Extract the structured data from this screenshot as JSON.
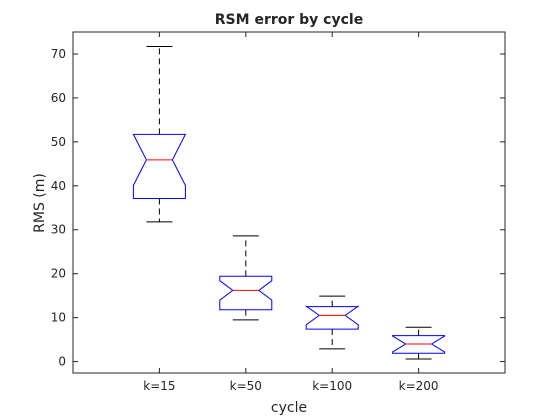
{
  "chart_data": {
    "type": "boxplot",
    "title": "RSM error by cycle",
    "xlabel": "cycle",
    "ylabel": "RMS (m)",
    "ylim": [
      -2.6,
      75
    ],
    "yticks": [
      0,
      10,
      20,
      30,
      40,
      50,
      60,
      70
    ],
    "grid": false,
    "notched": true,
    "categories": [
      "k=15",
      "k=50",
      "k=100",
      "k=200"
    ],
    "boxes": [
      {
        "label": "k=15",
        "whisker_low": 31.8,
        "q1": 37.1,
        "median": 45.9,
        "q3": 51.7,
        "whisker_high": 71.7,
        "notch_low": 40.1,
        "notch_high": 51.7
      },
      {
        "label": "k=50",
        "whisker_low": 9.5,
        "q1": 11.8,
        "median": 16.2,
        "q3": 19.4,
        "whisker_high": 28.6,
        "notch_low": 14.0,
        "notch_high": 18.4
      },
      {
        "label": "k=100",
        "whisker_low": 2.9,
        "q1": 7.4,
        "median": 10.5,
        "q3": 12.5,
        "whisker_high": 14.9,
        "notch_low": 8.4,
        "notch_high": 12.6
      },
      {
        "label": "k=200",
        "whisker_low": 0.6,
        "q1": 1.9,
        "median": 4.0,
        "q3": 5.9,
        "whisker_high": 7.8,
        "notch_low": 2.2,
        "notch_high": 5.8
      }
    ],
    "colors": {
      "box": "#0000ff",
      "median": "#ff0000",
      "whisker": "#000000",
      "axis": "#262626"
    }
  }
}
